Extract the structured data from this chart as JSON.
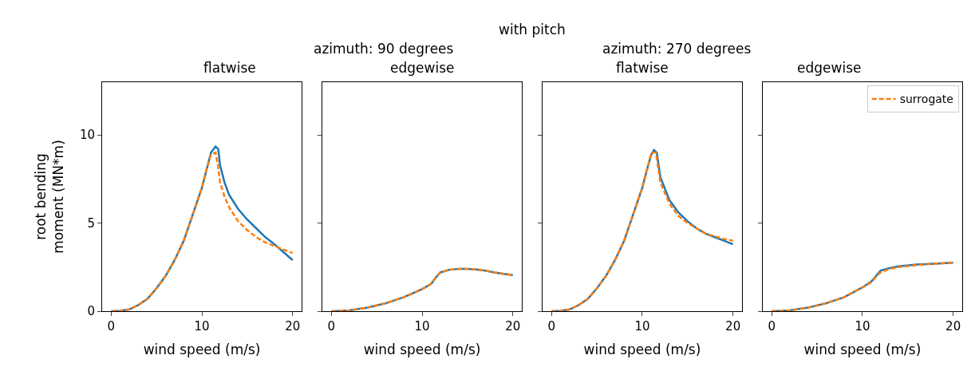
{
  "chart_data": [
    {
      "type": "line",
      "title": "flatwise",
      "annotations": [
        "with pitch",
        "azimuth: 90 degrees"
      ],
      "xlabel": "wind speed (m/s)",
      "ylabel": "root bending\nmoment (MN*m)",
      "xlim": [
        -1,
        21
      ],
      "xticks": [
        0,
        10,
        20
      ],
      "ylim": [
        0,
        13
      ],
      "yticks": [
        0,
        5,
        10
      ],
      "legend": false,
      "series": [
        {
          "color": "#1f77b4",
          "line_style": "solid",
          "x": [
            0,
            1,
            2,
            3,
            4,
            5,
            6,
            7,
            8,
            9,
            10,
            10.5,
            11,
            11.5,
            11.8,
            12,
            12.5,
            13,
            14,
            15,
            16,
            17,
            18,
            19,
            20
          ],
          "values": [
            0,
            0.02,
            0.1,
            0.35,
            0.7,
            1.3,
            2.0,
            2.9,
            4.0,
            5.5,
            7.0,
            8.0,
            9.0,
            9.35,
            9.2,
            8.3,
            7.3,
            6.6,
            5.8,
            5.2,
            4.7,
            4.2,
            3.8,
            3.35,
            2.9
          ]
        },
        {
          "color": "#ff7f0e",
          "line_style": "dashed",
          "x": [
            0,
            1,
            2,
            3,
            4,
            5,
            6,
            7,
            8,
            9,
            10,
            10.5,
            11,
            11.5,
            11.8,
            12,
            12.5,
            13,
            14,
            15,
            16,
            17,
            18,
            19,
            20
          ],
          "values": [
            0,
            0.02,
            0.1,
            0.35,
            0.7,
            1.3,
            2.0,
            2.9,
            4.0,
            5.5,
            7.0,
            8.0,
            8.9,
            9.0,
            8.2,
            7.3,
            6.5,
            5.9,
            5.1,
            4.6,
            4.2,
            3.9,
            3.7,
            3.5,
            3.3
          ]
        }
      ]
    },
    {
      "type": "line",
      "title": "edgewise",
      "xlabel": "wind speed (m/s)",
      "xlim": [
        -1,
        21
      ],
      "xticks": [
        0,
        10,
        20
      ],
      "ylim": [
        0,
        13
      ],
      "yticks": [
        0,
        5,
        10
      ],
      "tick_labels": "x",
      "legend": false,
      "series": [
        {
          "color": "#1f77b4",
          "line_style": "solid",
          "x": [
            0,
            2,
            4,
            6,
            8,
            10,
            11,
            11.5,
            12,
            13,
            14,
            15,
            16,
            17,
            18,
            19,
            20
          ],
          "values": [
            0,
            0.05,
            0.2,
            0.45,
            0.8,
            1.25,
            1.55,
            1.9,
            2.2,
            2.35,
            2.4,
            2.4,
            2.37,
            2.3,
            2.2,
            2.12,
            2.05
          ]
        },
        {
          "color": "#ff7f0e",
          "line_style": "dashed",
          "x": [
            0,
            2,
            4,
            6,
            8,
            10,
            11,
            11.5,
            12,
            13,
            14,
            15,
            16,
            17,
            18,
            19,
            20
          ],
          "values": [
            0,
            0.05,
            0.2,
            0.45,
            0.8,
            1.25,
            1.55,
            1.9,
            2.2,
            2.35,
            2.4,
            2.4,
            2.37,
            2.3,
            2.2,
            2.12,
            2.05
          ]
        }
      ]
    },
    {
      "type": "line",
      "title": "flatwise",
      "annotations": [
        "azimuth: 270 degrees"
      ],
      "xlabel": "wind speed (m/s)",
      "xlim": [
        -1,
        21
      ],
      "xticks": [
        0,
        10,
        20
      ],
      "ylim": [
        0,
        13
      ],
      "yticks": [
        0,
        5,
        10
      ],
      "tick_labels": "x",
      "legend": false,
      "series": [
        {
          "color": "#1f77b4",
          "line_style": "solid",
          "x": [
            0,
            1,
            2,
            3,
            4,
            5,
            6,
            7,
            8,
            9,
            10,
            10.5,
            11,
            11.3,
            11.6,
            12,
            13,
            14,
            15,
            16,
            17,
            18,
            19,
            20
          ],
          "values": [
            0,
            0.02,
            0.1,
            0.35,
            0.7,
            1.3,
            2.0,
            2.9,
            4.0,
            5.5,
            7.0,
            8.0,
            8.9,
            9.15,
            9.0,
            7.6,
            6.3,
            5.6,
            5.1,
            4.7,
            4.4,
            4.2,
            4.0,
            3.8
          ]
        },
        {
          "color": "#ff7f0e",
          "line_style": "dashed",
          "x": [
            0,
            1,
            2,
            3,
            4,
            5,
            6,
            7,
            8,
            9,
            10,
            10.5,
            11,
            11.5,
            12,
            13,
            14,
            15,
            16,
            17,
            18,
            19,
            20
          ],
          "values": [
            0,
            0.02,
            0.1,
            0.35,
            0.7,
            1.3,
            2.0,
            2.9,
            4.0,
            5.5,
            7.0,
            8.0,
            9.0,
            9.0,
            7.3,
            6.1,
            5.4,
            5.0,
            4.7,
            4.4,
            4.25,
            4.1,
            4.0
          ]
        }
      ]
    },
    {
      "type": "line",
      "title": "edgewise",
      "xlabel": "wind speed (m/s)",
      "xlim": [
        -1,
        21
      ],
      "xticks": [
        0,
        10,
        20
      ],
      "ylim": [
        0,
        13
      ],
      "yticks": [
        0,
        5,
        10
      ],
      "tick_labels": "x",
      "legend": "top right",
      "series": [
        {
          "color": "#1f77b4",
          "line_style": "solid",
          "x": [
            0,
            2,
            4,
            6,
            8,
            10,
            11,
            11.5,
            12,
            13,
            14,
            16,
            18,
            20
          ],
          "values": [
            0,
            0.05,
            0.2,
            0.45,
            0.8,
            1.35,
            1.7,
            2.0,
            2.3,
            2.45,
            2.55,
            2.65,
            2.7,
            2.75
          ]
        },
        {
          "name": "surrogate",
          "color": "#ff7f0e",
          "line_style": "dashed",
          "x": [
            0,
            2,
            4,
            6,
            8,
            10,
            11,
            11.5,
            12,
            13,
            14,
            16,
            18,
            20
          ],
          "values": [
            0,
            0.05,
            0.2,
            0.45,
            0.8,
            1.35,
            1.65,
            1.95,
            2.2,
            2.4,
            2.5,
            2.62,
            2.7,
            2.75
          ]
        }
      ]
    }
  ]
}
